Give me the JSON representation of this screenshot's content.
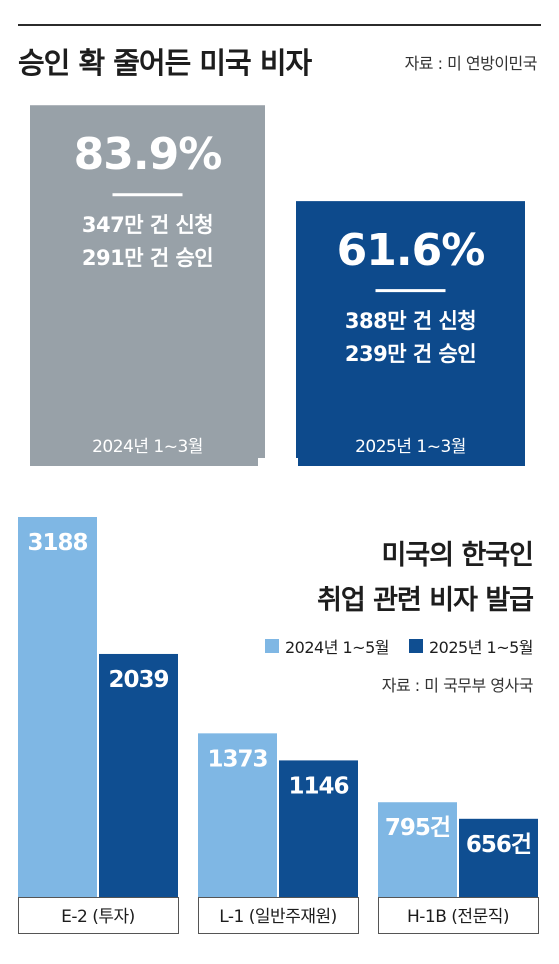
{
  "colors": {
    "gray_bar": "#98a1a8",
    "navy_bar": "#0d4a8c",
    "light_blue": "#7fb7e4",
    "dark_blue": "#0f4e91",
    "light_blue_label": "#5a9fd6",
    "text_dark": "#1d1d1d"
  },
  "section1": {
    "title": "승인 확 줄어든 미국 비자",
    "source": "자료 : 미 연방이민국"
  },
  "section2": {
    "title_line1": "미국의 한국인",
    "title_line2": "취업 관련 비자 발급",
    "legend": [
      "2024년 1~5월",
      "2025년 1~5월"
    ],
    "source": "자료 : 미 국무부 영사국"
  },
  "chart_data": [
    {
      "type": "bar",
      "title": "승인 확 줄어든 미국 비자",
      "categories": [
        "2024년 1~3월",
        "2025년 1~3월"
      ],
      "values": [
        83.9,
        61.6
      ],
      "value_labels": [
        "83.9%",
        "61.6%"
      ],
      "details": [
        [
          "347만 건 신청",
          "291만 건 승인"
        ],
        [
          "388만 건 신청",
          "239만 건 승인"
        ]
      ],
      "bar_colors": [
        "#98a1a8",
        "#0d4a8c"
      ],
      "ylim": [
        0,
        100
      ]
    },
    {
      "type": "bar",
      "title": "미국의 한국인 취업 관련 비자 발급",
      "categories": [
        "E-2 (투자)",
        "L-1 (일반주재원)",
        "H-1B (전문직)"
      ],
      "series": [
        {
          "name": "2024년 1~5월",
          "values": [
            3188,
            1373,
            795
          ],
          "labels": [
            "3188",
            "1373",
            "795건"
          ],
          "color": "#7fb7e4"
        },
        {
          "name": "2025년 1~5월",
          "values": [
            2039,
            1146,
            656
          ],
          "labels": [
            "2039",
            "1146",
            "656건"
          ],
          "color": "#0f4e91"
        }
      ],
      "ylim": [
        0,
        3500
      ]
    }
  ]
}
